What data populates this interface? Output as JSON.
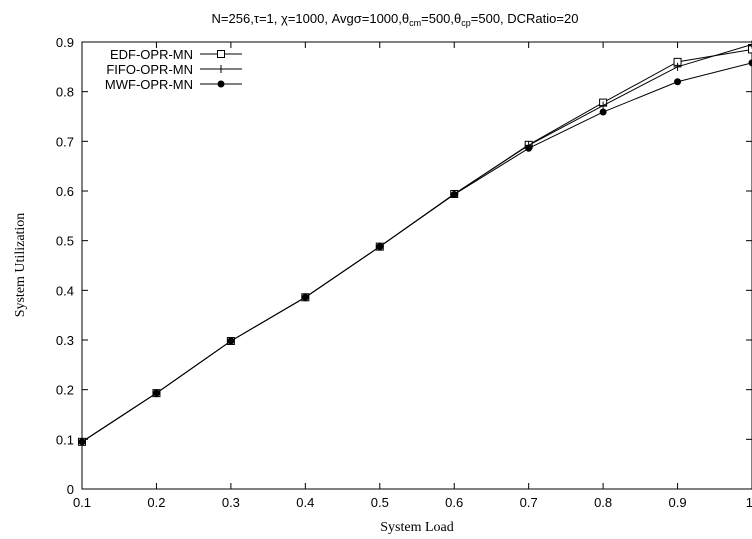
{
  "chart_data": {
    "type": "line",
    "title": {
      "parts": [
        {
          "text": "N=256,τ=1, χ=1000, Avgσ=1000,θ",
          "sub": false
        },
        {
          "text": "cm",
          "sub": true
        },
        {
          "text": "=500,θ",
          "sub": false
        },
        {
          "text": "cp",
          "sub": true
        },
        {
          "text": "=500, DCRatio=20",
          "sub": false
        }
      ]
    },
    "xlabel": "System Load",
    "ylabel": "System Utilization",
    "xlim": [
      0.1,
      1.0
    ],
    "ylim": [
      0,
      0.9
    ],
    "xticks": [
      0.1,
      0.2,
      0.3,
      0.4,
      0.5,
      0.6,
      0.7,
      0.8,
      0.9,
      1.0
    ],
    "xtick_labels": [
      "0.1",
      "0.2",
      "0.3",
      "0.4",
      "0.5",
      "0.6",
      "0.7",
      "0.8",
      "0.9",
      "1"
    ],
    "yticks": [
      0,
      0.1,
      0.2,
      0.3,
      0.4,
      0.5,
      0.6,
      0.7,
      0.8,
      0.9
    ],
    "ytick_labels": [
      "0",
      "0.1",
      "0.2",
      "0.3",
      "0.4",
      "0.5",
      "0.6",
      "0.7",
      "0.8",
      "0.9"
    ],
    "grid": false,
    "legend_position": "top-left",
    "x": [
      0.1,
      0.2,
      0.3,
      0.4,
      0.5,
      0.6,
      0.7,
      0.8,
      0.9,
      1.0
    ],
    "series": [
      {
        "name": "EDF-OPR-MN",
        "marker": "open-square",
        "values": [
          0.095,
          0.193,
          0.298,
          0.386,
          0.488,
          0.594,
          0.693,
          0.778,
          0.86,
          0.885
        ]
      },
      {
        "name": "FIFO-OPR-MN",
        "marker": "plus",
        "values": [
          0.095,
          0.193,
          0.298,
          0.386,
          0.488,
          0.594,
          0.692,
          0.772,
          0.85,
          0.895
        ]
      },
      {
        "name": "MWF-OPR-MN",
        "marker": "filled-circle",
        "values": [
          0.095,
          0.193,
          0.298,
          0.386,
          0.488,
          0.593,
          0.686,
          0.759,
          0.82,
          0.858
        ]
      }
    ],
    "line_color": "#000000"
  }
}
